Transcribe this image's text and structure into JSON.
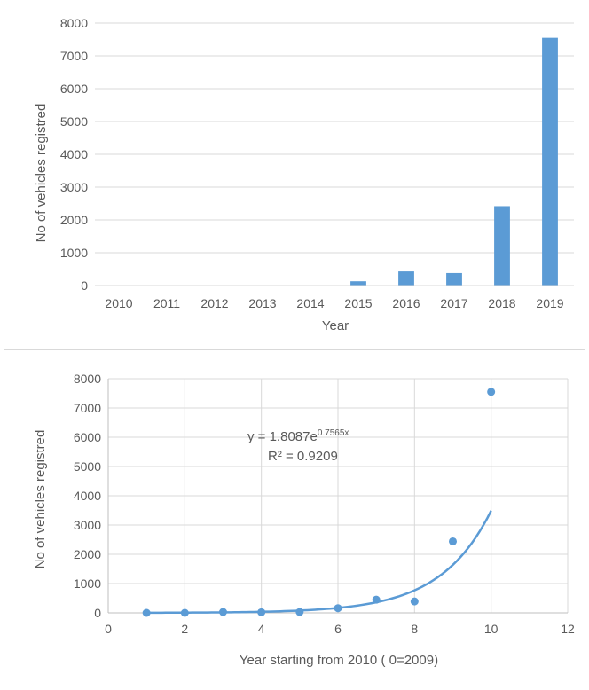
{
  "chart_data": [
    {
      "type": "bar",
      "title": "",
      "xlabel": "Year",
      "ylabel": "No of vehicles registred",
      "categories": [
        "2010",
        "2011",
        "2012",
        "2013",
        "2014",
        "2015",
        "2016",
        "2017",
        "2018",
        "2019"
      ],
      "values": [
        0,
        0,
        0,
        0,
        0,
        130,
        430,
        380,
        2420,
        7550
      ],
      "ylim": [
        0,
        8000
      ],
      "yticks": [
        "0",
        "1000",
        "2000",
        "3000",
        "4000",
        "5000",
        "6000",
        "7000",
        "8000"
      ],
      "grid": "horizontal",
      "bar_color": "#5b9bd5"
    },
    {
      "type": "scatter",
      "title": "",
      "xlabel": "Year starting from 2010 ( 0=2009)",
      "ylabel": "No of vehicles registred",
      "x": [
        1,
        2,
        3,
        4,
        5,
        6,
        7,
        8,
        9,
        10
      ],
      "y": [
        0,
        0,
        30,
        20,
        30,
        160,
        450,
        390,
        2440,
        7550
      ],
      "xlim": [
        0,
        12
      ],
      "ylim": [
        0,
        8000
      ],
      "xticks": [
        "0",
        "2",
        "4",
        "6",
        "8",
        "10",
        "12"
      ],
      "yticks": [
        "0",
        "1000",
        "2000",
        "3000",
        "4000",
        "5000",
        "6000",
        "7000",
        "8000"
      ],
      "grid": "both",
      "point_color": "#5b9bd5",
      "trendline": {
        "type": "exponential",
        "a": 1.8087,
        "b": 0.7565,
        "x_range": [
          1,
          10
        ],
        "equation_prefix": "y = 1.8087e",
        "equation_exponent": "0.7565x",
        "r2_label": "R² = 0.9209"
      }
    }
  ]
}
